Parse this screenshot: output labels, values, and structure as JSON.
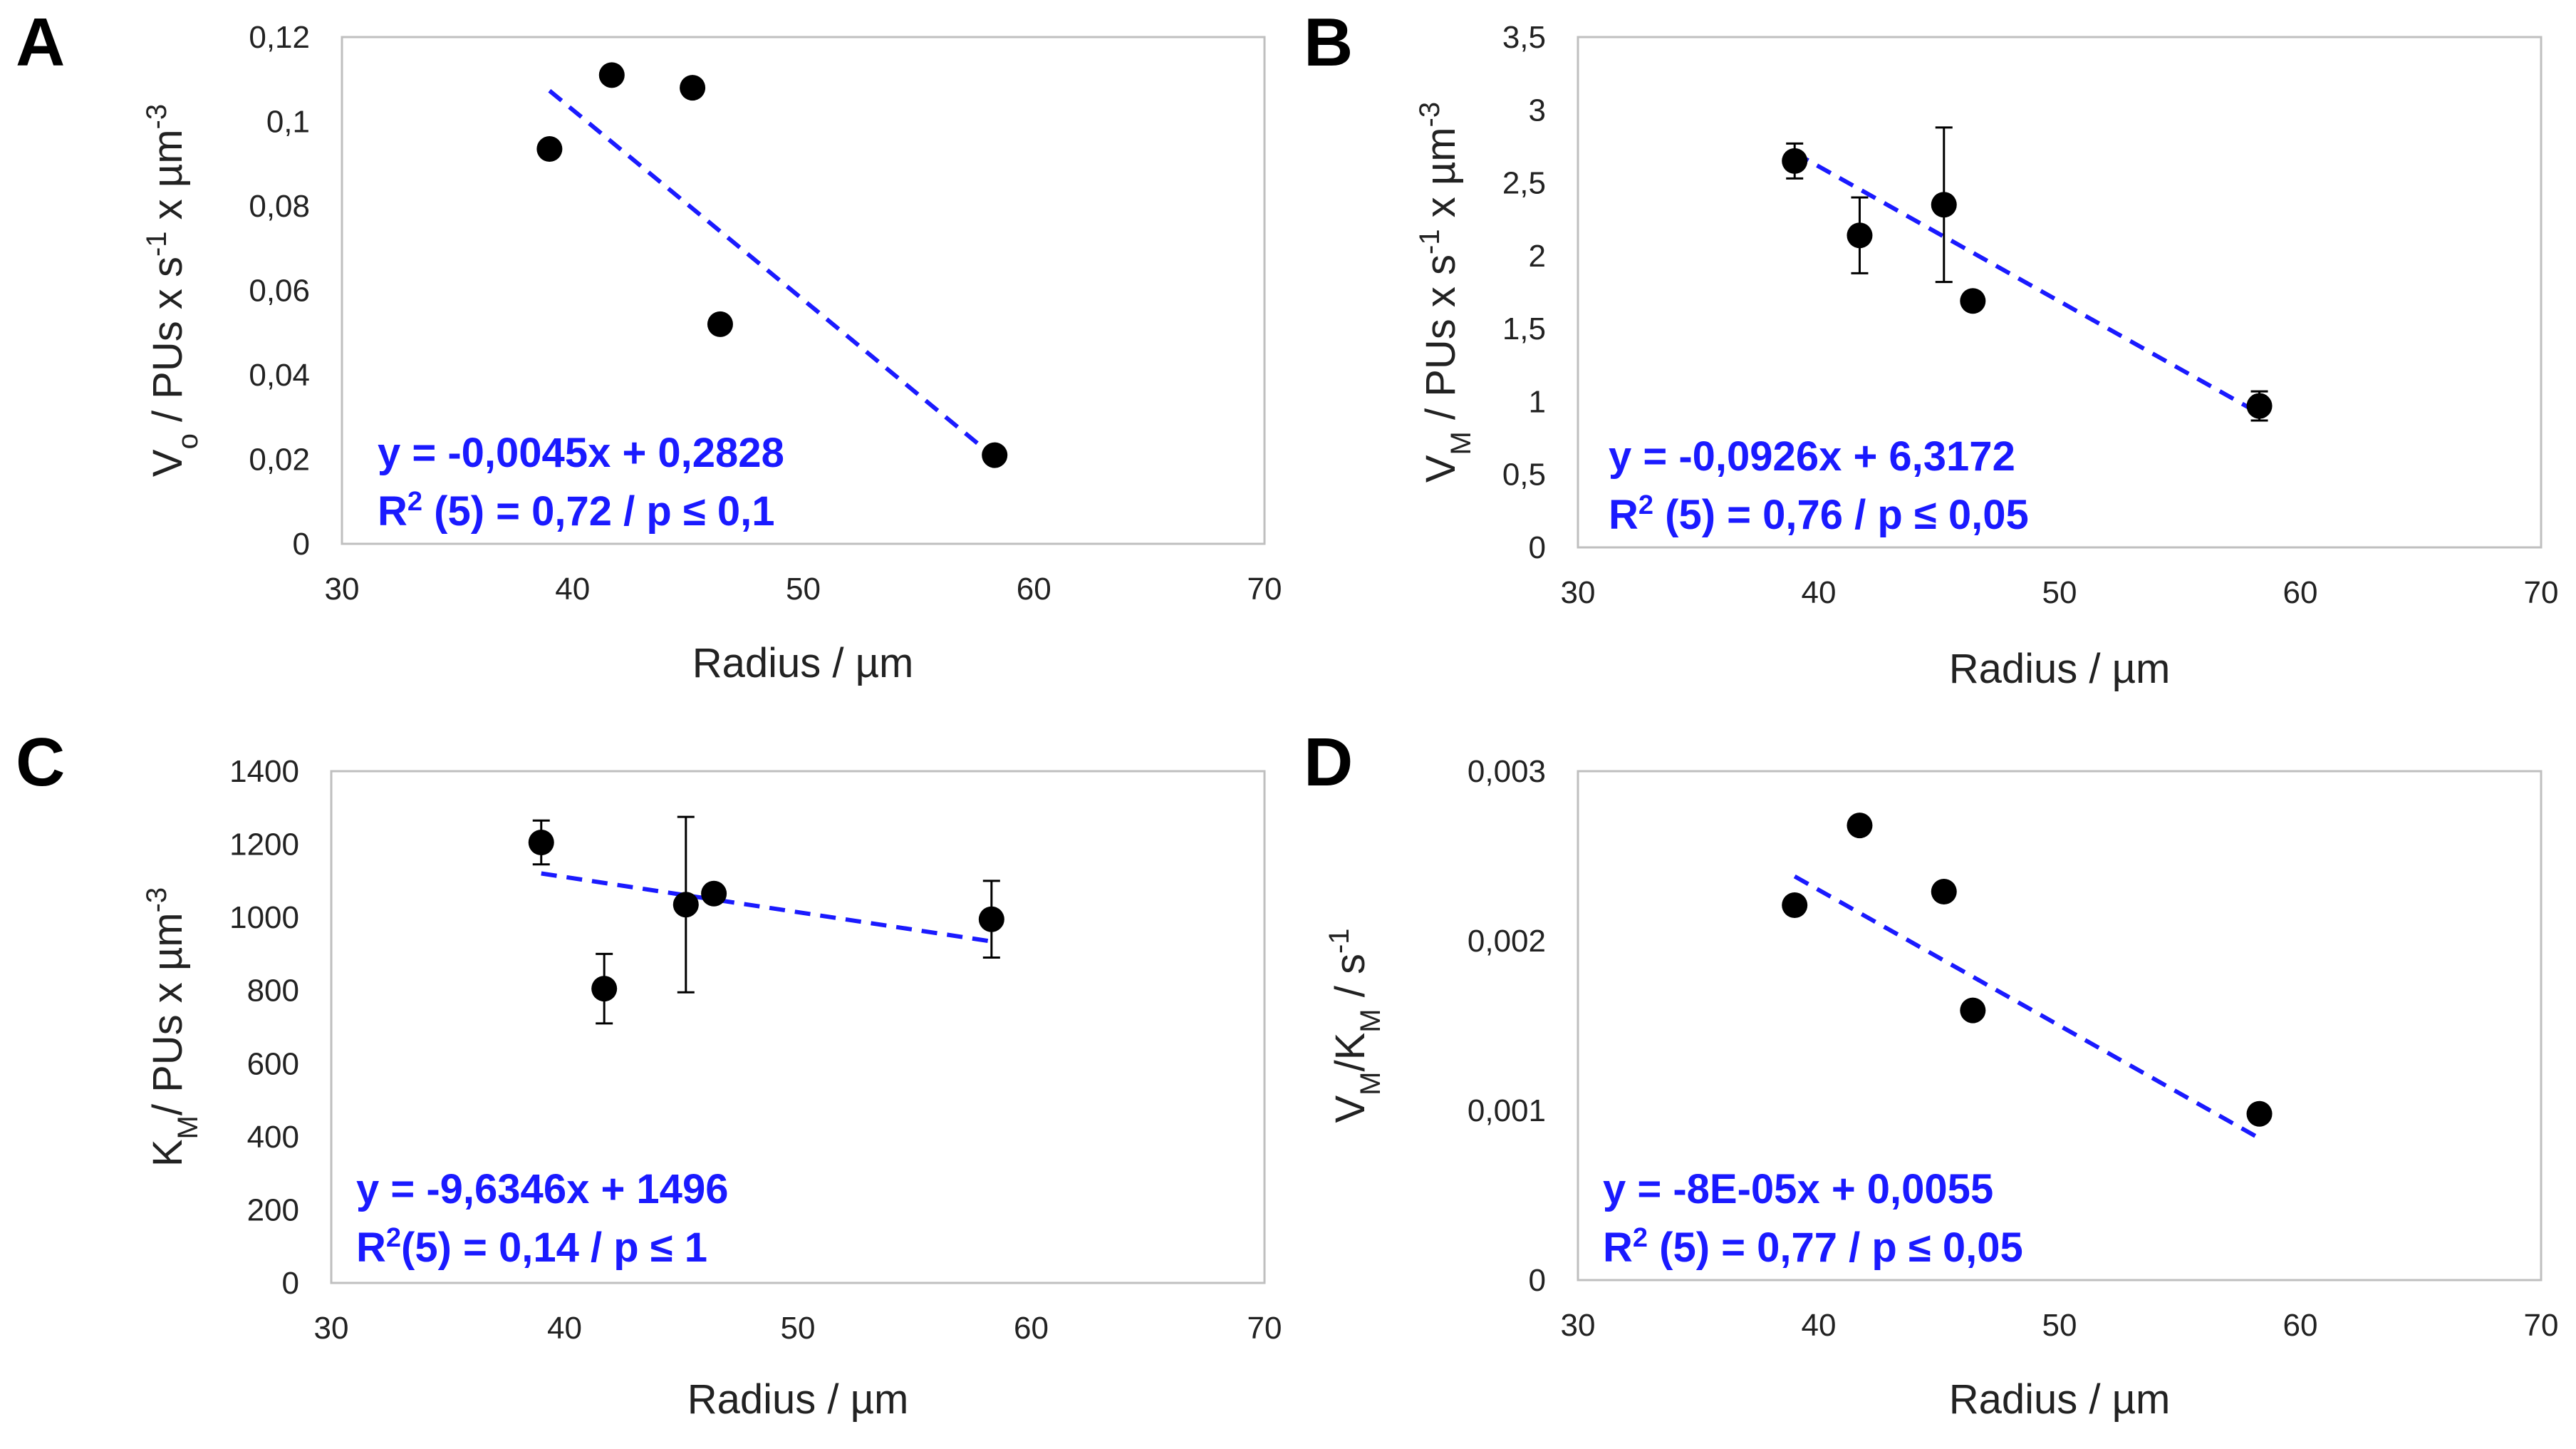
{
  "colors": {
    "trendline": "#1a1aff",
    "equation": "#1a1aff",
    "points": "#000000",
    "frame": "#bfbfbf"
  },
  "chart_data": [
    {
      "panel": "A",
      "type": "scatter",
      "xlabel": "Radius / µm",
      "ylabel": {
        "pre": "V",
        "sub": "o",
        "mid": " / PUs x s",
        "sup1": "-1",
        "mid2": " x µm",
        "sup2": "-3",
        "post": ""
      },
      "xlim": [
        30,
        70
      ],
      "xticks": [
        30,
        40,
        50,
        60,
        70
      ],
      "xtick_labels": [
        "30",
        "40",
        "50",
        "60",
        "70"
      ],
      "ylim": [
        0,
        0.12
      ],
      "yticks": [
        0,
        0.02,
        0.04,
        0.06,
        0.08,
        0.1,
        0.12
      ],
      "ytick_labels": [
        "0",
        "0,02",
        "0,04",
        "0,06",
        "0,08",
        "0,1",
        "0,12"
      ],
      "points": [
        {
          "x": 39.0,
          "y": 0.0935
        },
        {
          "x": 41.7,
          "y": 0.111
        },
        {
          "x": 45.2,
          "y": 0.108
        },
        {
          "x": 46.4,
          "y": 0.052
        },
        {
          "x": 58.3,
          "y": 0.021
        }
      ],
      "trendline": {
        "slope": -0.0045,
        "intercept": 0.2828,
        "x_range": [
          39.0,
          58.3
        ]
      },
      "equation": {
        "line1": "y = -0,0045x + 0,2828",
        "line2_pre": "R",
        "line2_sup": "2",
        "line2_post": " (5) = 0,72 / p ≤ 0,1"
      }
    },
    {
      "panel": "B",
      "type": "scatter",
      "xlabel": "Radius / µm",
      "ylabel": {
        "pre": "V",
        "sub": "M",
        "mid": " / PUs x s",
        "sup1": "-1",
        "mid2": " x µm",
        "sup2": "-3",
        "post": ""
      },
      "xlim": [
        30,
        70
      ],
      "xticks": [
        30,
        40,
        50,
        60,
        70
      ],
      "xtick_labels": [
        "30",
        "40",
        "50",
        "60",
        "70"
      ],
      "ylim": [
        0,
        3.5
      ],
      "yticks": [
        0,
        0.5,
        1,
        1.5,
        2,
        2.5,
        3,
        3.5
      ],
      "ytick_labels": [
        "0",
        "0,5",
        "1",
        "1,5",
        "2",
        "2,5",
        "3",
        "3,5"
      ],
      "points": [
        {
          "x": 39.0,
          "y": 2.65,
          "err": 0.12
        },
        {
          "x": 41.7,
          "y": 2.14,
          "err": 0.26
        },
        {
          "x": 45.2,
          "y": 2.35,
          "err": 0.53
        },
        {
          "x": 46.4,
          "y": 1.69
        },
        {
          "x": 58.3,
          "y": 0.97,
          "err": 0.1
        }
      ],
      "trendline": {
        "slope": -0.0926,
        "intercept": 6.3172,
        "x_range": [
          39.0,
          58.3
        ]
      },
      "equation": {
        "line1": "y = -0,0926x + 6,3172",
        "line2_pre": "R",
        "line2_sup": "2",
        "line2_post": " (5) = 0,76 / p ≤ 0,05"
      }
    },
    {
      "panel": "C",
      "type": "scatter",
      "xlabel": "Radius / µm",
      "ylabel": {
        "pre": "K",
        "sub": "M",
        "mid": "/ PUs x µm",
        "sup1": "-3",
        "mid2": "",
        "sup2": "",
        "post": ""
      },
      "xlim": [
        30,
        70
      ],
      "xticks": [
        30,
        40,
        50,
        60,
        70
      ],
      "xtick_labels": [
        "30",
        "40",
        "50",
        "60",
        "70"
      ],
      "ylim": [
        0,
        1400
      ],
      "yticks": [
        0,
        200,
        400,
        600,
        800,
        1000,
        1200,
        1400
      ],
      "ytick_labels": [
        "0",
        "200",
        "400",
        "600",
        "800",
        "1000",
        "1200",
        "1400"
      ],
      "points": [
        {
          "x": 39.0,
          "y": 1205,
          "err": 60
        },
        {
          "x": 41.7,
          "y": 805,
          "err": 95
        },
        {
          "x": 45.2,
          "y": 1035,
          "err": 240
        },
        {
          "x": 46.4,
          "y": 1065
        },
        {
          "x": 58.3,
          "y": 995,
          "err": 105
        }
      ],
      "trendline": {
        "slope": -9.6346,
        "intercept": 1496,
        "x_range": [
          39.0,
          58.3
        ]
      },
      "equation": {
        "line1": "y = -9,6346x + 1496",
        "line2_pre": "R",
        "line2_sup": "2",
        "line2_post": "(5) = 0,14 / p ≤ 1"
      }
    },
    {
      "panel": "D",
      "type": "scatter",
      "xlabel": "Radius / µm",
      "ylabel": {
        "pre": "V",
        "sub": "M",
        "mid": "/K",
        "sub2": "M",
        "mid2": "  / s",
        "sup2": "-1",
        "post": ""
      },
      "xlim": [
        30,
        70
      ],
      "xticks": [
        30,
        40,
        50,
        60,
        70
      ],
      "xtick_labels": [
        "30",
        "40",
        "50",
        "60",
        "70"
      ],
      "ylim": [
        0,
        0.003
      ],
      "yticks": [
        0,
        0.001,
        0.002,
        0.003
      ],
      "ytick_labels": [
        "0",
        "0,001",
        "0,002",
        "0,003"
      ],
      "points": [
        {
          "x": 39.0,
          "y": 0.00221
        },
        {
          "x": 41.7,
          "y": 0.00268
        },
        {
          "x": 45.2,
          "y": 0.00229
        },
        {
          "x": 46.4,
          "y": 0.00159
        },
        {
          "x": 58.3,
          "y": 0.00098
        }
      ],
      "trendline": {
        "slope": -8e-05,
        "intercept": 0.0055,
        "x_range": [
          39.0,
          58.3
        ]
      },
      "equation": {
        "line1": "y = -8E-05x + 0,0055",
        "line2_pre": "R",
        "line2_sup": "2",
        "line2_post": " (5) = 0,77 / p ≤ 0,05"
      }
    }
  ]
}
